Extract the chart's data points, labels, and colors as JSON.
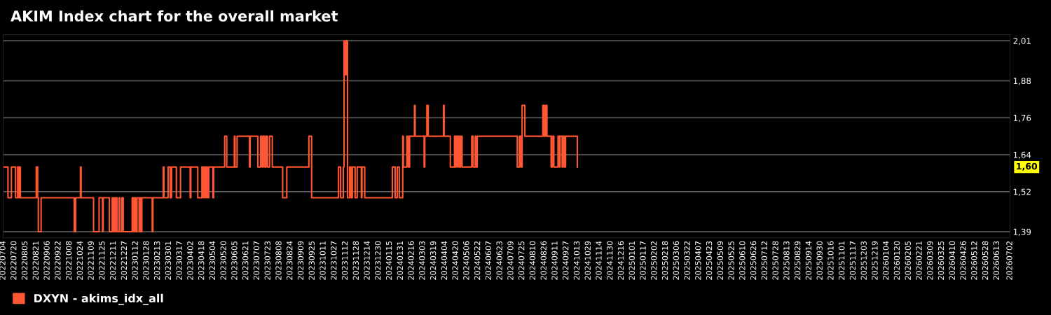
{
  "chart_data": {
    "type": "step",
    "title": "AKIM Index chart for the overall market",
    "x": [
      "2022-07-04",
      "2022-07-11",
      "2022-07-16",
      "2022-07-22",
      "2022-07-25",
      "2022-07-27",
      "2022-07-28",
      "2022-07-29",
      "2022-08-21",
      "2022-08-23",
      "2022-08-24",
      "2022-08-28",
      "2022-10-15",
      "2022-10-17",
      "2022-10-24",
      "2022-10-25",
      "2022-11-12",
      "2022-11-20",
      "2022-11-25",
      "2022-11-26",
      "2022-12-05",
      "2022-12-09",
      "2022-12-10",
      "2022-12-12",
      "2022-12-14",
      "2022-12-15",
      "2022-12-16",
      "2022-12-19",
      "2022-12-20",
      "2022-12-23",
      "2022-12-25",
      "2023-01-07",
      "2023-01-09",
      "2023-01-10",
      "2023-01-12",
      "2023-01-14",
      "2023-01-17",
      "2023-01-19",
      "2023-01-20",
      "2023-01-21",
      "2023-02-05",
      "2023-02-06",
      "2023-02-21",
      "2023-02-22",
      "2023-02-28",
      "2023-03-03",
      "2023-03-05",
      "2023-03-12",
      "2023-03-18",
      "2023-04-01",
      "2023-04-02",
      "2023-04-12",
      "2023-04-18",
      "2023-04-20",
      "2023-04-21",
      "2023-04-23",
      "2023-04-24",
      "2023-04-26",
      "2023-04-28",
      "2023-05-04",
      "2023-05-05",
      "2023-05-21",
      "2023-05-24",
      "2023-06-04",
      "2023-06-05",
      "2023-06-08",
      "2023-06-26",
      "2023-06-27",
      "2023-07-08",
      "2023-07-12",
      "2023-07-14",
      "2023-07-16",
      "2023-07-18",
      "2023-07-20",
      "2023-07-22",
      "2023-07-25",
      "2023-07-29",
      "2023-08-13",
      "2023-08-19",
      "2023-09-20",
      "2023-09-24",
      "2023-11-02",
      "2023-11-05",
      "2023-11-09",
      "2023-11-10",
      "2023-11-12",
      "2023-11-13",
      "2023-11-15",
      "2023-11-18",
      "2023-11-20",
      "2023-11-22",
      "2023-11-26",
      "2023-11-29",
      "2023-12-05",
      "2023-12-06",
      "2023-12-10",
      "2024-01-19",
      "2024-01-23",
      "2024-01-26",
      "2024-01-29",
      "2024-02-03",
      "2024-02-04",
      "2024-02-09",
      "2024-02-11",
      "2024-02-13",
      "2024-02-20",
      "2024-02-21",
      "2024-03-05",
      "2024-03-06",
      "2024-03-09",
      "2024-03-11",
      "2024-04-02",
      "2024-04-03",
      "2024-04-12",
      "2024-04-18",
      "2024-04-19",
      "2024-04-20",
      "2024-04-22",
      "2024-04-23",
      "2024-04-25",
      "2024-04-27",
      "2024-04-29",
      "2024-05-13",
      "2024-05-15",
      "2024-05-18",
      "2024-05-19",
      "2024-05-21",
      "2024-07-18",
      "2024-07-21",
      "2024-07-23",
      "2024-07-25",
      "2024-07-29",
      "2024-08-24",
      "2024-08-26",
      "2024-08-28",
      "2024-08-30",
      "2024-09-05",
      "2024-09-07",
      "2024-09-09",
      "2024-09-15",
      "2024-09-17",
      "2024-09-18",
      "2024-09-21",
      "2024-09-22",
      "2024-09-24",
      "2024-09-26",
      "2024-10-13"
    ],
    "series": [
      {
        "name": "DXYN - akims_idx_all",
        "color": "#ff5733",
        "values": [
          1.6,
          1.5,
          1.6,
          1.5,
          1.6,
          1.5,
          1.6,
          1.5,
          1.6,
          1.5,
          1.39,
          1.5,
          1.39,
          1.5,
          1.6,
          1.5,
          1.39,
          1.5,
          1.39,
          1.5,
          1.39,
          1.5,
          1.39,
          1.5,
          1.39,
          1.5,
          1.39,
          1.5,
          1.39,
          1.5,
          1.39,
          1.5,
          1.39,
          1.5,
          1.39,
          1.5,
          1.39,
          1.5,
          1.39,
          1.5,
          1.39,
          1.5,
          1.6,
          1.5,
          1.6,
          1.5,
          1.6,
          1.5,
          1.6,
          1.5,
          1.6,
          1.5,
          1.6,
          1.5,
          1.6,
          1.5,
          1.6,
          1.5,
          1.6,
          1.5,
          1.6,
          1.7,
          1.6,
          1.7,
          1.6,
          1.7,
          1.6,
          1.7,
          1.6,
          1.7,
          1.6,
          1.7,
          1.6,
          1.7,
          1.6,
          1.7,
          1.6,
          1.5,
          1.6,
          1.7,
          1.5,
          1.6,
          1.5,
          1.6,
          2.01,
          1.9,
          2.01,
          1.5,
          1.6,
          1.5,
          1.6,
          1.5,
          1.6,
          1.5,
          1.6,
          1.5,
          1.6,
          1.5,
          1.6,
          1.5,
          1.7,
          1.6,
          1.7,
          1.6,
          1.7,
          1.8,
          1.7,
          1.6,
          1.7,
          1.8,
          1.7,
          1.8,
          1.7,
          1.6,
          1.7,
          1.6,
          1.7,
          1.6,
          1.7,
          1.6,
          1.7,
          1.6,
          1.7,
          1.6,
          1.7,
          1.6,
          1.7,
          1.6,
          1.7,
          1.6,
          1.8,
          1.7,
          1.8,
          1.7,
          1.8,
          1.7,
          1.6,
          1.7,
          1.6,
          1.7,
          1.6,
          1.7,
          1.6,
          1.7,
          1.6,
          1.7,
          1.6
        ]
      }
    ],
    "ylim": [
      1.37,
      2.03
    ],
    "yticks": [
      {
        "value": 1.39,
        "label": "1,39"
      },
      {
        "value": 1.52,
        "label": "1,52"
      },
      {
        "value": 1.64,
        "label": "1,64"
      },
      {
        "value": 1.76,
        "label": "1,76"
      },
      {
        "value": 1.88,
        "label": "1,88"
      },
      {
        "value": 2.01,
        "label": "2,01"
      }
    ],
    "xlim": [
      "2022-07-04",
      "2026-07-02"
    ],
    "xticks": [
      {
        "value": "2022-07-04",
        "label": "20220704"
      },
      {
        "value": "2022-07-20",
        "label": "20220720"
      },
      {
        "value": "2022-08-05",
        "label": "20220805"
      },
      {
        "value": "2022-08-21",
        "label": "20220821"
      },
      {
        "value": "2022-09-06",
        "label": "20220906"
      },
      {
        "value": "2022-09-22",
        "label": "20220922"
      },
      {
        "value": "2022-10-08",
        "label": "20221008"
      },
      {
        "value": "2022-10-24",
        "label": "20221024"
      },
      {
        "value": "2022-11-09",
        "label": "20221109"
      },
      {
        "value": "2022-11-25",
        "label": "20221125"
      },
      {
        "value": "2022-12-11",
        "label": "20221211"
      },
      {
        "value": "2022-12-27",
        "label": "20221227"
      },
      {
        "value": "2023-01-12",
        "label": "20230112"
      },
      {
        "value": "2023-01-28",
        "label": "20230128"
      },
      {
        "value": "2023-02-13",
        "label": "20230213"
      },
      {
        "value": "2023-03-01",
        "label": "20230301"
      },
      {
        "value": "2023-03-17",
        "label": "20230317"
      },
      {
        "value": "2023-04-02",
        "label": "20230402"
      },
      {
        "value": "2023-04-18",
        "label": "20230418"
      },
      {
        "value": "2023-05-04",
        "label": "20230504"
      },
      {
        "value": "2023-05-20",
        "label": "20230520"
      },
      {
        "value": "2023-06-05",
        "label": "20230605"
      },
      {
        "value": "2023-06-21",
        "label": "20230621"
      },
      {
        "value": "2023-07-07",
        "label": "20230707"
      },
      {
        "value": "2023-07-23",
        "label": "20230723"
      },
      {
        "value": "2023-08-08",
        "label": "20230808"
      },
      {
        "value": "2023-08-24",
        "label": "20230824"
      },
      {
        "value": "2023-09-09",
        "label": "20230909"
      },
      {
        "value": "2023-09-25",
        "label": "20230925"
      },
      {
        "value": "2023-10-11",
        "label": "20231011"
      },
      {
        "value": "2023-10-27",
        "label": "20231027"
      },
      {
        "value": "2023-11-12",
        "label": "20231112"
      },
      {
        "value": "2023-11-28",
        "label": "20231128"
      },
      {
        "value": "2023-12-14",
        "label": "20231214"
      },
      {
        "value": "2023-12-30",
        "label": "20231230"
      },
      {
        "value": "2024-01-15",
        "label": "20240115"
      },
      {
        "value": "2024-01-31",
        "label": "20240131"
      },
      {
        "value": "2024-02-16",
        "label": "20240216"
      },
      {
        "value": "2024-03-03",
        "label": "20240303"
      },
      {
        "value": "2024-03-19",
        "label": "20240319"
      },
      {
        "value": "2024-04-04",
        "label": "20240404"
      },
      {
        "value": "2024-04-20",
        "label": "20240420"
      },
      {
        "value": "2024-05-06",
        "label": "20240506"
      },
      {
        "value": "2024-05-22",
        "label": "20240522"
      },
      {
        "value": "2024-06-07",
        "label": "20240607"
      },
      {
        "value": "2024-06-23",
        "label": "20240623"
      },
      {
        "value": "2024-07-09",
        "label": "20240709"
      },
      {
        "value": "2024-07-25",
        "label": "20240725"
      },
      {
        "value": "2024-08-10",
        "label": "20240810"
      },
      {
        "value": "2024-08-26",
        "label": "20240826"
      },
      {
        "value": "2024-09-11",
        "label": "20240911"
      },
      {
        "value": "2024-09-27",
        "label": "20240927"
      },
      {
        "value": "2024-10-13",
        "label": "20241013"
      },
      {
        "value": "2024-10-29",
        "label": "20241029"
      },
      {
        "value": "2024-11-14",
        "label": "20241114"
      },
      {
        "value": "2024-11-30",
        "label": "20241130"
      },
      {
        "value": "2024-12-16",
        "label": "20241216"
      },
      {
        "value": "2025-01-01",
        "label": "20250101"
      },
      {
        "value": "2025-01-17",
        "label": "20250117"
      },
      {
        "value": "2025-02-02",
        "label": "20250202"
      },
      {
        "value": "2025-02-18",
        "label": "20250218"
      },
      {
        "value": "2025-03-06",
        "label": "20250306"
      },
      {
        "value": "2025-03-22",
        "label": "20250322"
      },
      {
        "value": "2025-04-07",
        "label": "20250407"
      },
      {
        "value": "2025-04-23",
        "label": "20250423"
      },
      {
        "value": "2025-05-09",
        "label": "20250509"
      },
      {
        "value": "2025-05-25",
        "label": "20250525"
      },
      {
        "value": "2025-06-10",
        "label": "20250610"
      },
      {
        "value": "2025-06-26",
        "label": "20250626"
      },
      {
        "value": "2025-07-12",
        "label": "20250712"
      },
      {
        "value": "2025-07-28",
        "label": "20250728"
      },
      {
        "value": "2025-08-13",
        "label": "20250813"
      },
      {
        "value": "2025-08-29",
        "label": "20250829"
      },
      {
        "value": "2025-09-14",
        "label": "20250914"
      },
      {
        "value": "2025-09-30",
        "label": "20250930"
      },
      {
        "value": "2025-10-16",
        "label": "20251016"
      },
      {
        "value": "2025-11-01",
        "label": "20251101"
      },
      {
        "value": "2025-11-17",
        "label": "20251117"
      },
      {
        "value": "2025-12-03",
        "label": "20251203"
      },
      {
        "value": "2025-12-19",
        "label": "20251219"
      },
      {
        "value": "2026-01-04",
        "label": "20260104"
      },
      {
        "value": "2026-01-20",
        "label": "20260120"
      },
      {
        "value": "2026-02-05",
        "label": "20260205"
      },
      {
        "value": "2026-02-21",
        "label": "20260221"
      },
      {
        "value": "2026-03-09",
        "label": "20260309"
      },
      {
        "value": "2026-03-25",
        "label": "20260325"
      },
      {
        "value": "2026-04-10",
        "label": "20260410"
      },
      {
        "value": "2026-04-26",
        "label": "20260426"
      },
      {
        "value": "2026-05-12",
        "label": "20260512"
      },
      {
        "value": "2026-05-28",
        "label": "20260528"
      },
      {
        "value": "2026-06-13",
        "label": "20260613"
      },
      {
        "value": "2026-07-02",
        "label": "20260702"
      }
    ],
    "annotations": [
      "1,60"
    ],
    "grid": "y",
    "legend": "bottom left"
  }
}
